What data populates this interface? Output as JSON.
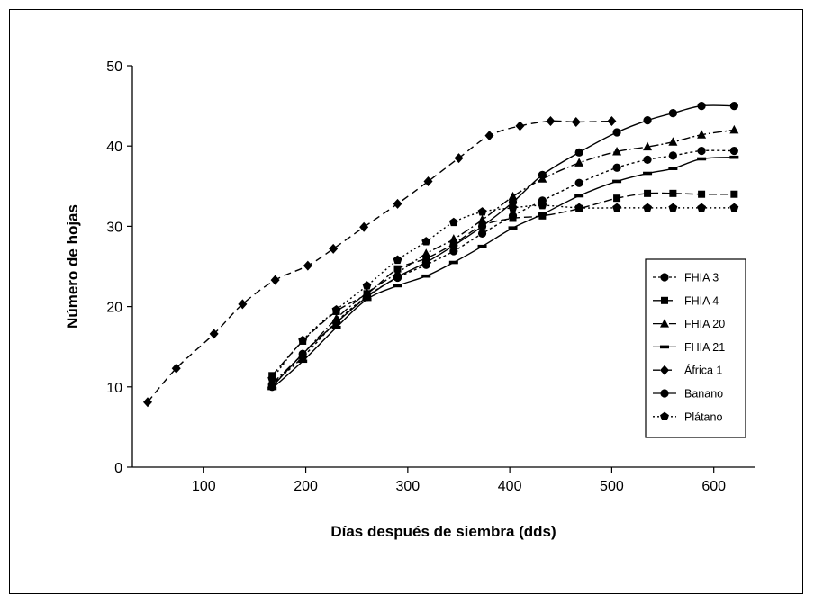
{
  "chart_data": {
    "type": "line",
    "title": "",
    "xlabel": "Días después de siembra (dds)",
    "ylabel": "Número de hojas",
    "xlim": [
      30,
      640
    ],
    "ylim": [
      0,
      50
    ],
    "xticks": [
      100,
      200,
      300,
      400,
      500,
      600
    ],
    "yticks": [
      0,
      10,
      20,
      30,
      40,
      50
    ],
    "grid": false,
    "legend_position": "right",
    "series": [
      {
        "name": "FHIA 3",
        "marker": "circle",
        "dash": "3,3",
        "x": [
          167,
          197,
          230,
          260,
          290,
          318,
          345,
          373,
          403,
          432,
          468,
          505,
          535,
          560,
          588,
          620
        ],
        "y": [
          10.3,
          13.7,
          18.1,
          21.3,
          23.6,
          25.2,
          26.9,
          29.1,
          31.3,
          33.2,
          35.4,
          37.3,
          38.3,
          38.8,
          39.4,
          39.4
        ]
      },
      {
        "name": "FHIA 4",
        "marker": "square",
        "dash": "9,4",
        "x": [
          167,
          197,
          230,
          260,
          290,
          318,
          345,
          373,
          403,
          432,
          468,
          505,
          535,
          560,
          588,
          620
        ],
        "y": [
          11.4,
          15.7,
          19.4,
          21.6,
          24.7,
          26.0,
          27.8,
          30.1,
          31.0,
          31.3,
          32.2,
          33.5,
          34.1,
          34.1,
          34.0,
          34.0
        ]
      },
      {
        "name": "FHIA 20",
        "marker": "triangle",
        "dash": "10,3,2,3",
        "x": [
          167,
          197,
          230,
          260,
          290,
          318,
          345,
          373,
          403,
          432,
          468,
          505,
          535,
          560,
          588,
          620
        ],
        "y": [
          10.4,
          14.1,
          18.5,
          21.7,
          24.2,
          26.6,
          28.4,
          30.8,
          33.7,
          35.9,
          37.9,
          39.3,
          39.9,
          40.5,
          41.4,
          42.0
        ]
      },
      {
        "name": "FHIA 21",
        "marker": "dash",
        "dash": "",
        "x": [
          167,
          197,
          230,
          260,
          290,
          318,
          345,
          373,
          403,
          432,
          468,
          505,
          535,
          560,
          588,
          620
        ],
        "y": [
          9.8,
          13.2,
          17.4,
          20.9,
          22.6,
          23.8,
          25.5,
          27.5,
          29.8,
          31.5,
          33.8,
          35.6,
          36.6,
          37.2,
          38.4,
          38.6
        ]
      },
      {
        "name": "África 1",
        "marker": "diamond",
        "dash": "8,5",
        "x": [
          45,
          73,
          110,
          138,
          170,
          202,
          227,
          257,
          290,
          320,
          350,
          380,
          410,
          440,
          465,
          500
        ],
        "y": [
          8.1,
          12.3,
          16.6,
          20.3,
          23.3,
          25.1,
          27.2,
          29.9,
          32.8,
          35.6,
          38.5,
          41.3,
          42.5,
          43.1,
          43.0,
          43.1
        ]
      },
      {
        "name": "Banano",
        "marker": "circle",
        "dash": "",
        "x": [
          167,
          197,
          230,
          260,
          290,
          318,
          345,
          373,
          403,
          432,
          468,
          505,
          535,
          560,
          588,
          620
        ],
        "y": [
          10.0,
          14.1,
          18.0,
          21.2,
          23.7,
          25.5,
          27.6,
          30.0,
          33.0,
          36.4,
          39.2,
          41.7,
          43.2,
          44.1,
          45.0,
          45.0
        ]
      },
      {
        "name": "Plátano",
        "marker": "pentagon",
        "dash": "2,3",
        "x": [
          167,
          197,
          230,
          260,
          290,
          318,
          345,
          373,
          403,
          432,
          468,
          505,
          535,
          560,
          588,
          620
        ],
        "y": [
          11.0,
          15.8,
          19.6,
          22.6,
          25.8,
          28.1,
          30.5,
          31.8,
          32.3,
          32.6,
          32.3,
          32.3,
          32.3,
          32.3,
          32.3,
          32.3
        ]
      }
    ]
  }
}
